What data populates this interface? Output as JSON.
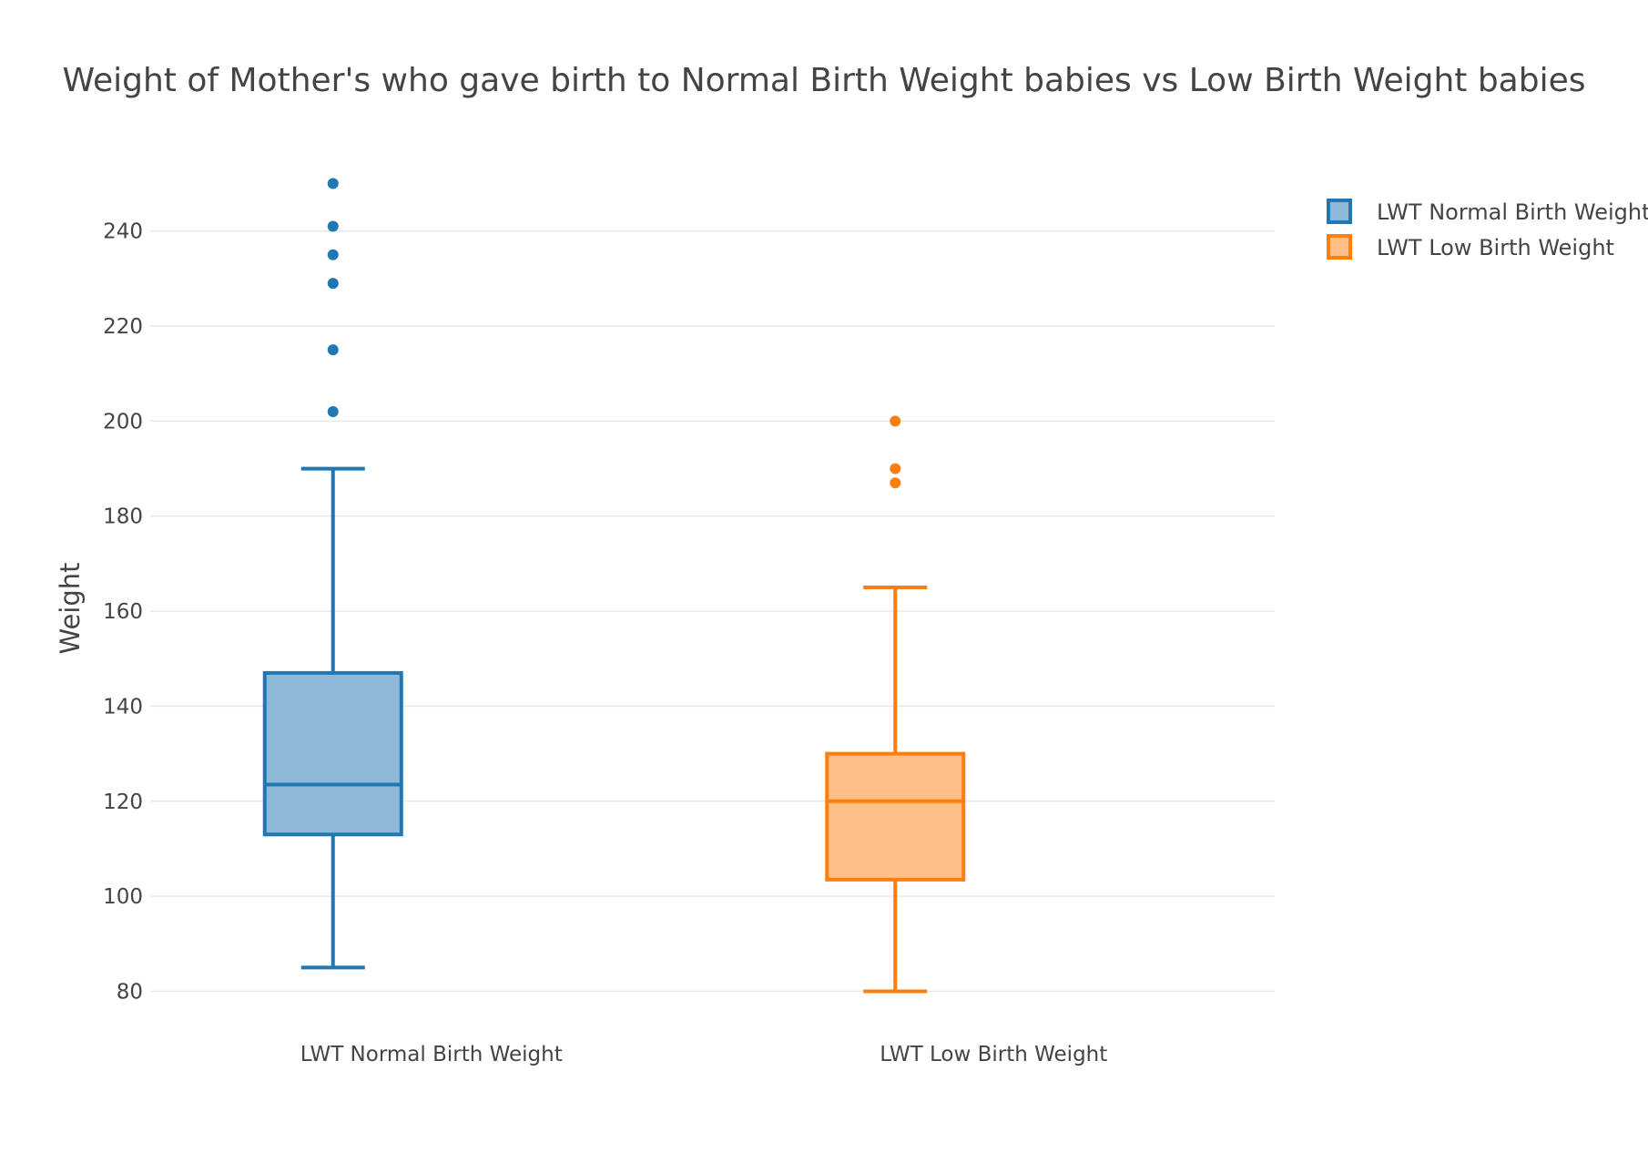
{
  "chart_data": {
    "type": "box",
    "title": "Weight of Mother's who gave birth to Normal Birth Weight babies vs Low Birth Weight babies",
    "xlabel": "",
    "ylabel": "Weight",
    "ylim": [
      73,
      257
    ],
    "yticks": [
      80,
      100,
      120,
      140,
      160,
      180,
      200,
      220,
      240
    ],
    "grid": true,
    "legend_position": "top-right",
    "series": [
      {
        "name": "LWT Normal Birth Weight",
        "category": "LWT Normal Birth Weight",
        "color": "#1f77b4",
        "fill": "#8fb9d9",
        "min": 85,
        "q1": 113,
        "median": 123.5,
        "q3": 147,
        "max": 190,
        "outliers": [
          202,
          215,
          229,
          235,
          241,
          250
        ]
      },
      {
        "name": "LWT Low Birth Weight",
        "category": "LWT Low Birth Weight",
        "color": "#ff7f0e",
        "fill": "#ffbf86",
        "min": 80,
        "q1": 103.5,
        "median": 120,
        "q3": 130,
        "max": 165,
        "outliers": [
          187,
          190,
          200
        ]
      }
    ]
  }
}
